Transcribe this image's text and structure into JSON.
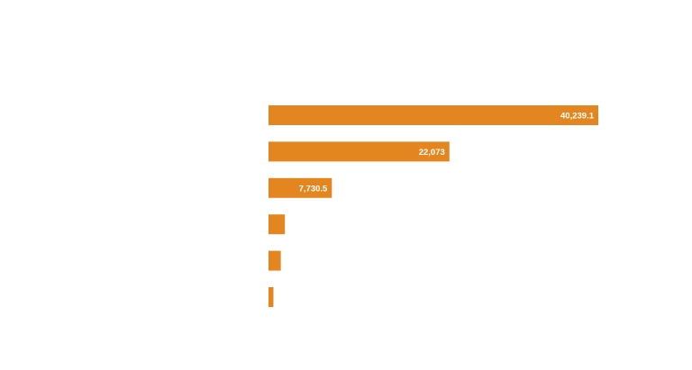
{
  "chart_data": {
    "type": "bar",
    "orientation": "horizontal",
    "title": "",
    "xlabel": "",
    "ylabel": "",
    "categories": [
      "",
      "",
      "",
      "",
      "",
      ""
    ],
    "values": [
      40239.1,
      22073,
      7730.5,
      2000,
      1500,
      600
    ],
    "data_labels": [
      "40,239.1",
      "22,073",
      "7,730.5",
      "",
      "",
      ""
    ],
    "xlim": [
      0,
      40239.1
    ],
    "bar_color": "#e3861f",
    "label_color": "#ffffff",
    "grid": false,
    "legend": "none"
  }
}
